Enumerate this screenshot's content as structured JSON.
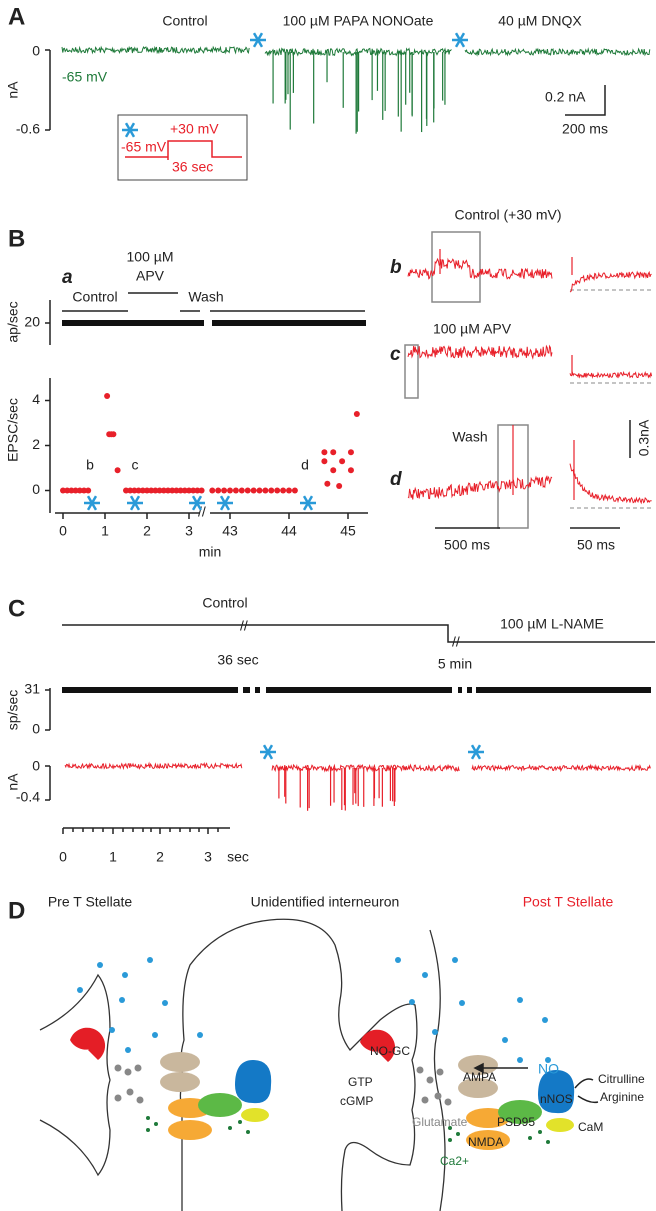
{
  "panel_a": {
    "label": "A",
    "conditions": [
      "Control",
      "100 µM PAPA NONOate",
      "40 µM DNQX"
    ],
    "holding": "-65 mV",
    "y_axis": {
      "label": "nA",
      "ticks": [
        "0",
        "-0.6"
      ]
    },
    "scale_bar": {
      "amplitude": "0.2 nA",
      "time": "200 ms"
    },
    "inset": {
      "step_high": "+30 mV",
      "step_base": "-65 mV",
      "duration": "36 sec"
    }
  },
  "panel_b": {
    "label": "B",
    "sublabel": "a",
    "apv_line1": "100 µM",
    "apv_line2": "APV",
    "control": "Control",
    "wash": "Wash",
    "rate_axis": {
      "label": "ap/sec",
      "ticks": [
        "20"
      ]
    },
    "epsc_axis": {
      "label": "EPSC/sec",
      "ylim": [
        -1,
        5
      ],
      "yticks": [
        0,
        2,
        4
      ]
    },
    "x_axis": {
      "label": "min",
      "ticks": [
        0,
        1,
        2,
        3,
        43,
        44,
        45
      ]
    },
    "points_x": [
      0,
      0.1,
      0.2,
      0.3,
      0.4,
      0.5,
      0.6,
      1.05,
      1.1,
      1.15,
      1.2,
      1.3,
      1.5,
      1.6,
      1.7,
      1.8,
      1.9,
      2,
      2.1,
      2.2,
      2.3,
      2.4,
      2.5,
      2.6,
      2.7,
      2.8,
      2.9,
      3,
      3.1,
      3.2,
      3.3,
      42.7,
      42.8,
      42.9,
      43,
      43.1,
      43.2,
      43.3,
      43.4,
      43.5,
      43.6,
      43.7,
      43.8,
      43.9,
      44,
      44.1,
      44.6,
      44.75,
      44.6,
      44.9,
      44.75,
      45.05,
      44.65,
      44.85,
      45.05,
      45.15
    ],
    "points_y": [
      0,
      0,
      0,
      0,
      0,
      0,
      0,
      4.2,
      2.5,
      2.5,
      2.5,
      0.9,
      0,
      0,
      0,
      0,
      0,
      0,
      0,
      0,
      0,
      0,
      0,
      0,
      0,
      0,
      0,
      0,
      0,
      0,
      0,
      0,
      0,
      0,
      0,
      0,
      0,
      0,
      0,
      0,
      0,
      0,
      0,
      0,
      0,
      0,
      1.7,
      1.7,
      1.3,
      1.3,
      0.9,
      0.9,
      0.3,
      0.2,
      1.7,
      3.4
    ],
    "markers": [
      "b",
      "c",
      "d"
    ],
    "traces": [
      {
        "letter": "b",
        "title": "Control (+30 mV)"
      },
      {
        "letter": "c",
        "title": "100 µM APV"
      },
      {
        "letter": "d",
        "title": "Wash"
      }
    ],
    "scale_bars": {
      "amplitude": "0.3nA",
      "long": "500 ms",
      "short": "50 ms"
    }
  },
  "panel_c": {
    "label": "C",
    "control": "Control",
    "gap1": "36 sec",
    "gap2": "5 min",
    "drug": "100 µM L-NAME",
    "rate_axis": {
      "label": "sp/sec",
      "ticks": [
        "31",
        "0"
      ]
    },
    "current_axis": {
      "label": "nA",
      "ticks": [
        "0",
        "-0.4"
      ]
    },
    "x_axis": {
      "ticks": [
        "0",
        "1",
        "2",
        "3"
      ],
      "unit": "sec"
    }
  },
  "panel_d": {
    "label": "D",
    "pre": "Pre T Stellate",
    "middle": "Unidentified interneuron",
    "post": "Post T Stellate",
    "labels": {
      "no": "NO",
      "no_gc": "NO-GC",
      "gtp": "GTP",
      "cgmp": "cGMP",
      "ampa": "AMPA",
      "glutamate": "Glutamate",
      "psd95": "PSD95",
      "nnos": "nNOS",
      "citrulline": "Citrulline",
      "arginine": "Arginine",
      "nmda": "NMDA",
      "cam": "CaM",
      "ca": "Ca2+"
    }
  }
}
